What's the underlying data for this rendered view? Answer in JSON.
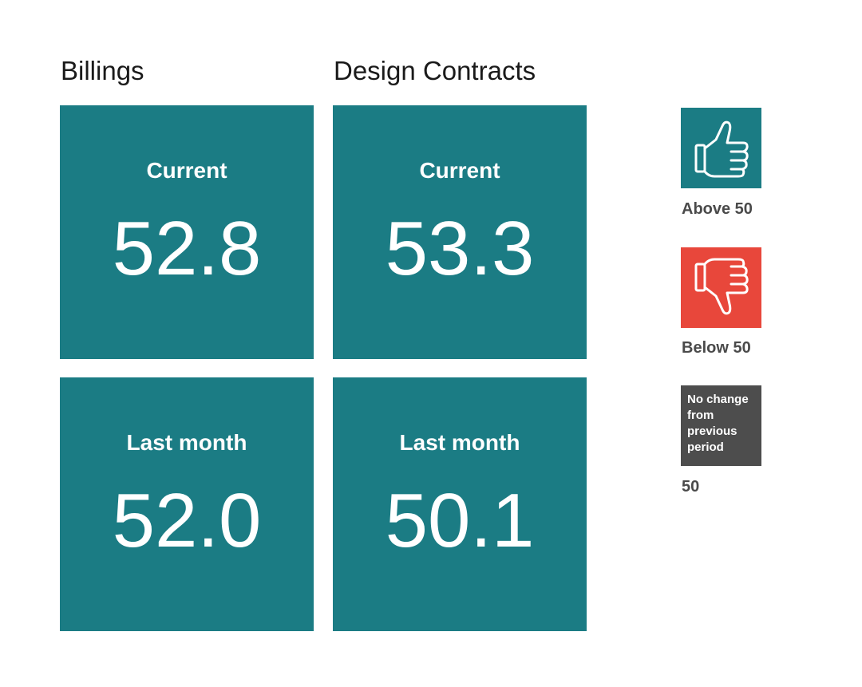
{
  "columns": [
    {
      "title": "Billings",
      "current_label": "Current",
      "current_value": "52.8",
      "last_label": "Last month",
      "last_value": "52.0"
    },
    {
      "title": "Design Contracts",
      "current_label": "Current",
      "current_value": "53.3",
      "last_label": "Last month",
      "last_value": "50.1"
    }
  ],
  "legend": {
    "above": {
      "label": "Above 50",
      "icon": "thumbs-up-icon",
      "color": "#1b7c84"
    },
    "below": {
      "label": "Below 50",
      "icon": "thumbs-down-icon",
      "color": "#e8473b"
    },
    "nochange": {
      "box_text": "No change from previous period",
      "label": "50",
      "color": "#4d4d4d"
    }
  },
  "colors": {
    "tile": "#1b7c84",
    "text": "#1a1a1a"
  }
}
